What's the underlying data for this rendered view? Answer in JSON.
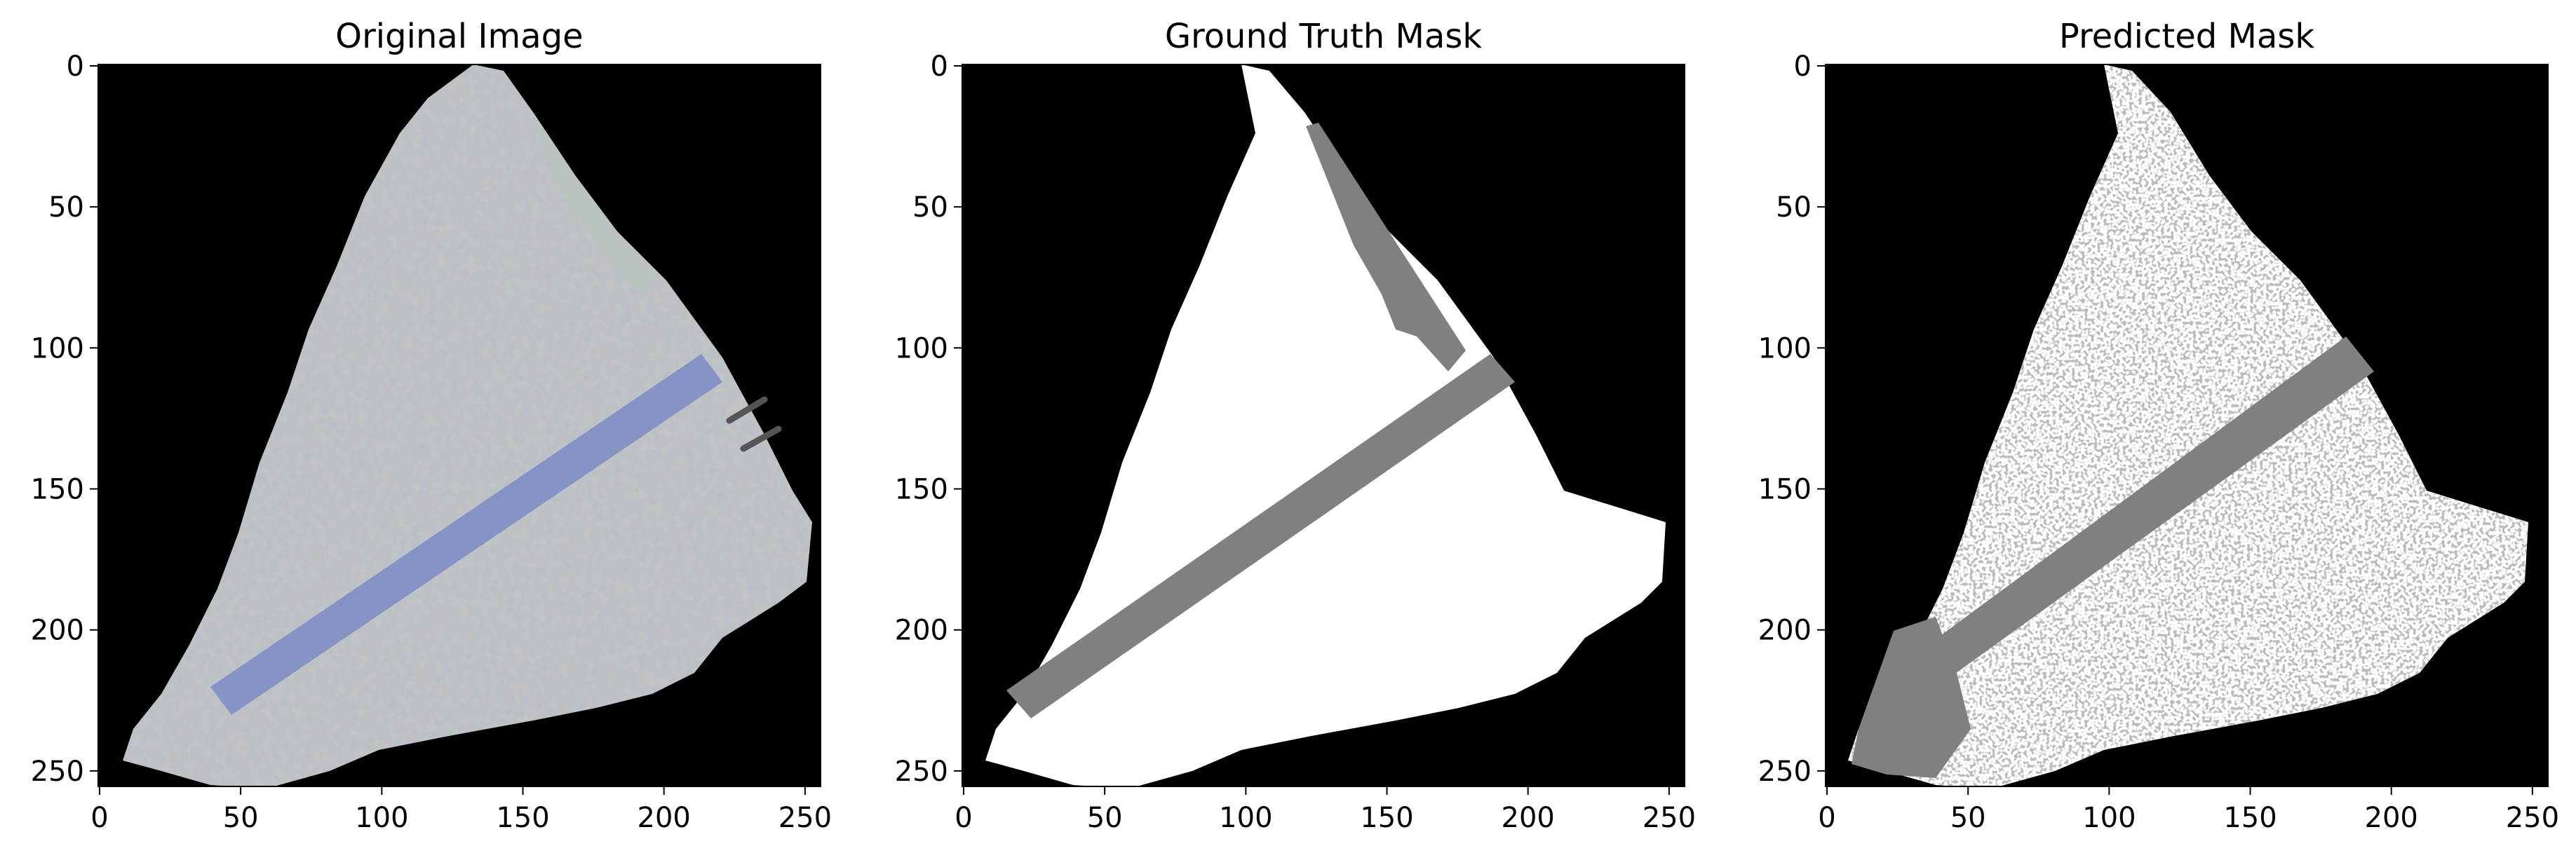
{
  "figure": {
    "panels": [
      {
        "title": "Original Image",
        "x_ticks": [
          "0",
          "50",
          "100",
          "150",
          "200",
          "250"
        ],
        "y_ticks": [
          "0",
          "50",
          "100",
          "150",
          "200",
          "250"
        ]
      },
      {
        "title": "Ground Truth Mask",
        "x_ticks": [
          "0",
          "50",
          "100",
          "150",
          "200",
          "250"
        ],
        "y_ticks": [
          "0",
          "50",
          "100",
          "150",
          "200",
          "250"
        ]
      },
      {
        "title": "Predicted Mask",
        "x_ticks": [
          "0",
          "50",
          "100",
          "150",
          "200",
          "250"
        ],
        "y_ticks": [
          "0",
          "50",
          "100",
          "150",
          "200",
          "250"
        ]
      }
    ],
    "colors": {
      "background": "#000000",
      "fragment": "#c4c7c4",
      "tape": "#7f8fc4",
      "mask_white": "#ffffff",
      "mask_gray": "#808080"
    }
  }
}
